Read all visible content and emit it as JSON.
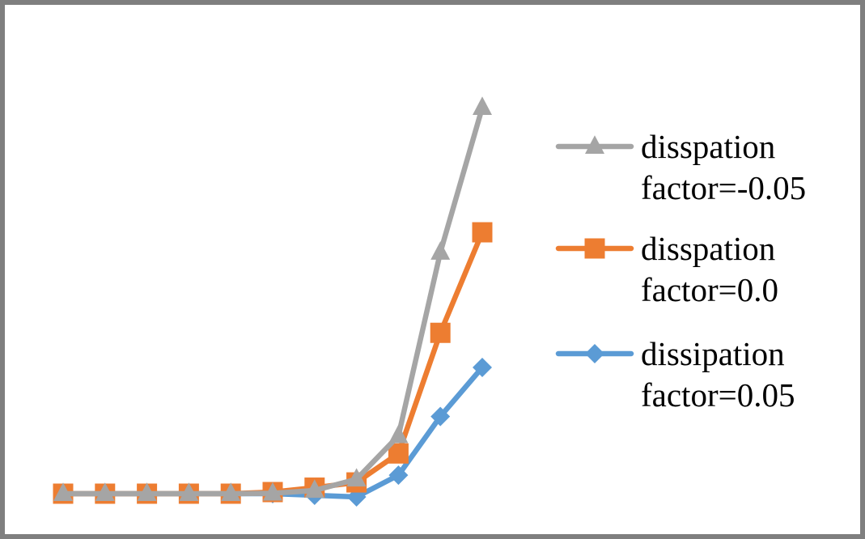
{
  "chart_data": {
    "type": "line",
    "title": "",
    "xlabel": "",
    "ylabel": "",
    "x": [
      1,
      2,
      3,
      4,
      5,
      6,
      7,
      8,
      9,
      10,
      11
    ],
    "grid": false,
    "legend_position": "right",
    "series": [
      {
        "key": "s1",
        "name_line1": "disspation",
        "name_line2": "factor=-0.05",
        "marker": "triangle",
        "color": "#a5a5a5",
        "values": [
          0.0,
          0.0,
          0.0,
          0.0,
          0.0,
          0.1,
          0.8,
          3.6,
          14.4,
          60.0,
          96.0
        ]
      },
      {
        "key": "s2",
        "name_line1": "disspation",
        "name_line2": "factor=0.0",
        "marker": "square",
        "color": "#ed7d31",
        "values": [
          0.0,
          0.0,
          0.0,
          0.0,
          0.0,
          0.4,
          1.5,
          2.8,
          10.0,
          40.0,
          65.0
        ]
      },
      {
        "key": "s3",
        "name_line1": "dissipation",
        "name_line2": "factor=0.05",
        "marker": "diamond",
        "color": "#5b9bd5",
        "values": [
          0.0,
          0.0,
          0.0,
          0.0,
          0.0,
          0.0,
          -0.4,
          -0.8,
          4.6,
          19.2,
          31.4
        ]
      }
    ]
  }
}
